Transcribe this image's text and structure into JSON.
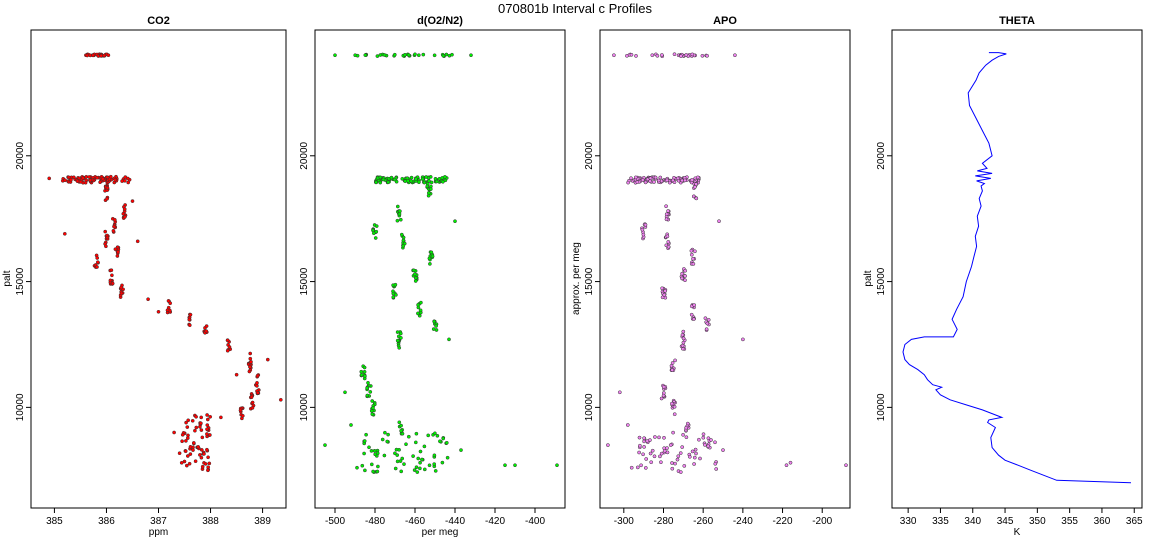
{
  "figure": {
    "title": "070801b   Interval c Profiles"
  },
  "colors": {
    "co2": "#ff0000",
    "o2n2": "#00ee00",
    "apo": "#ee82ee",
    "theta": "#0000ff",
    "outline": "#333333"
  },
  "chart_data": [
    {
      "type": "scatter",
      "title": "CO2",
      "xlabel": "ppm",
      "ylabel": "palt",
      "xlim": [
        384.55,
        389.45
      ],
      "ylim": [
        6000,
        25000
      ],
      "xticks": [
        385,
        386,
        387,
        388,
        389
      ],
      "yticks": [
        10000,
        15000,
        20000
      ],
      "clusters": [
        {
          "x": 385.8,
          "y": 24000,
          "dx": 0.25,
          "dy": 40,
          "n": 28
        },
        {
          "x": 385.8,
          "y": 19050,
          "dx": 0.65,
          "dy": 120,
          "n": 90
        },
        {
          "x": 386.0,
          "y": 18500,
          "dx": 0.03,
          "dy": 350,
          "n": 12
        },
        {
          "x": 386.35,
          "y": 17800,
          "dx": 0.03,
          "dy": 300,
          "n": 10
        },
        {
          "x": 386.15,
          "y": 17200,
          "dx": 0.03,
          "dy": 300,
          "n": 10
        },
        {
          "x": 386.0,
          "y": 16700,
          "dx": 0.03,
          "dy": 300,
          "n": 10
        },
        {
          "x": 386.2,
          "y": 16200,
          "dx": 0.03,
          "dy": 250,
          "n": 8
        },
        {
          "x": 385.8,
          "y": 15800,
          "dx": 0.04,
          "dy": 250,
          "n": 8
        },
        {
          "x": 386.1,
          "y": 15200,
          "dx": 0.03,
          "dy": 350,
          "n": 10
        },
        {
          "x": 386.3,
          "y": 14600,
          "dx": 0.03,
          "dy": 300,
          "n": 10
        },
        {
          "x": 387.2,
          "y": 14000,
          "dx": 0.03,
          "dy": 250,
          "n": 8
        },
        {
          "x": 387.6,
          "y": 13500,
          "dx": 0.03,
          "dy": 250,
          "n": 8
        },
        {
          "x": 387.9,
          "y": 13000,
          "dx": 0.03,
          "dy": 250,
          "n": 8
        },
        {
          "x": 388.35,
          "y": 12500,
          "dx": 0.03,
          "dy": 250,
          "n": 8
        },
        {
          "x": 388.75,
          "y": 11800,
          "dx": 0.03,
          "dy": 400,
          "n": 12
        },
        {
          "x": 388.9,
          "y": 11000,
          "dx": 0.03,
          "dy": 450,
          "n": 12
        },
        {
          "x": 388.8,
          "y": 10200,
          "dx": 0.03,
          "dy": 350,
          "n": 10
        },
        {
          "x": 388.6,
          "y": 9800,
          "dx": 0.03,
          "dy": 250,
          "n": 8
        },
        {
          "x": 387.7,
          "y": 8600,
          "dx": 0.3,
          "dy": 1100,
          "n": 70
        }
      ],
      "scatter_points": [
        [
          385.2,
          16900
        ],
        [
          386.6,
          16600
        ],
        [
          384.9,
          19100
        ],
        [
          389.35,
          10300
        ],
        [
          388.2,
          9600
        ],
        [
          388.5,
          11300
        ],
        [
          389.1,
          11900
        ],
        [
          387.95,
          7500
        ],
        [
          386.8,
          14300
        ],
        [
          387.0,
          13800
        ],
        [
          386.5,
          18200
        ],
        [
          387.3,
          9000
        ]
      ]
    },
    {
      "type": "scatter",
      "title": "d(O2/N2)",
      "xlabel": "per meg",
      "ylabel": "",
      "xlim": [
        -510,
        -385
      ],
      "ylim": [
        6000,
        25000
      ],
      "xticks": [
        -500,
        -480,
        -460,
        -440,
        -420,
        -400
      ],
      "yticks": [
        10000,
        15000,
        20000
      ],
      "clusters": [
        {
          "x": -465,
          "y": 24000,
          "dx": 25,
          "dy": 40,
          "n": 30
        },
        {
          "x": -462,
          "y": 19050,
          "dx": 18,
          "dy": 120,
          "n": 90
        },
        {
          "x": -453,
          "y": 18600,
          "dx": 1,
          "dy": 300,
          "n": 10
        },
        {
          "x": -468,
          "y": 17700,
          "dx": 1,
          "dy": 300,
          "n": 10
        },
        {
          "x": -480,
          "y": 17000,
          "dx": 1,
          "dy": 300,
          "n": 10
        },
        {
          "x": -466,
          "y": 16600,
          "dx": 1,
          "dy": 300,
          "n": 10
        },
        {
          "x": -452,
          "y": 16000,
          "dx": 1,
          "dy": 300,
          "n": 10
        },
        {
          "x": -460,
          "y": 15200,
          "dx": 1,
          "dy": 350,
          "n": 10
        },
        {
          "x": -470,
          "y": 14600,
          "dx": 1,
          "dy": 300,
          "n": 10
        },
        {
          "x": -458,
          "y": 13900,
          "dx": 1,
          "dy": 300,
          "n": 10
        },
        {
          "x": -450,
          "y": 13300,
          "dx": 1,
          "dy": 250,
          "n": 8
        },
        {
          "x": -468,
          "y": 12700,
          "dx": 1,
          "dy": 400,
          "n": 12
        },
        {
          "x": -486,
          "y": 11400,
          "dx": 1,
          "dy": 300,
          "n": 10
        },
        {
          "x": -483,
          "y": 10700,
          "dx": 1,
          "dy": 300,
          "n": 10
        },
        {
          "x": -481,
          "y": 10000,
          "dx": 1,
          "dy": 300,
          "n": 10
        },
        {
          "x": -467,
          "y": 9200,
          "dx": 1,
          "dy": 250,
          "n": 8
        },
        {
          "x": -465,
          "y": 8200,
          "dx": 22,
          "dy": 800,
          "n": 70
        }
      ],
      "scatter_points": [
        [
          -500,
          24000
        ],
        [
          -432,
          24000
        ],
        [
          -505,
          8500
        ],
        [
          -440,
          17400
        ],
        [
          -443,
          12700
        ],
        [
          -495,
          10600
        ],
        [
          -492,
          9300
        ],
        [
          -489,
          7600
        ],
        [
          -410,
          7700
        ],
        [
          -389,
          7700
        ],
        [
          -415,
          7700
        ],
        [
          -437,
          8300
        ]
      ]
    },
    {
      "type": "scatter",
      "title": "APO",
      "xlabel": "",
      "ylabel": "approx. per meg",
      "xlim": [
        -312,
        -186
      ],
      "ylim": [
        6000,
        25000
      ],
      "xticks": [
        -300,
        -280,
        -260,
        -240,
        -220,
        -200
      ],
      "yticks": [
        10000,
        15000,
        20000
      ],
      "clusters": [
        {
          "x": -280,
          "y": 24000,
          "dx": 22,
          "dy": 40,
          "n": 28
        },
        {
          "x": -280,
          "y": 19050,
          "dx": 18,
          "dy": 120,
          "n": 90
        },
        {
          "x": -264,
          "y": 18600,
          "dx": 1,
          "dy": 300,
          "n": 10
        },
        {
          "x": -278,
          "y": 17700,
          "dx": 1,
          "dy": 300,
          "n": 10
        },
        {
          "x": -290,
          "y": 17000,
          "dx": 1,
          "dy": 300,
          "n": 10
        },
        {
          "x": -278,
          "y": 16600,
          "dx": 1,
          "dy": 300,
          "n": 10
        },
        {
          "x": -265,
          "y": 16000,
          "dx": 1,
          "dy": 300,
          "n": 10
        },
        {
          "x": -270,
          "y": 15200,
          "dx": 1,
          "dy": 350,
          "n": 10
        },
        {
          "x": -280,
          "y": 14600,
          "dx": 1,
          "dy": 300,
          "n": 10
        },
        {
          "x": -265,
          "y": 13800,
          "dx": 1,
          "dy": 300,
          "n": 10
        },
        {
          "x": -258,
          "y": 13300,
          "dx": 1,
          "dy": 250,
          "n": 8
        },
        {
          "x": -270,
          "y": 12700,
          "dx": 1,
          "dy": 400,
          "n": 12
        },
        {
          "x": -275,
          "y": 11600,
          "dx": 1,
          "dy": 300,
          "n": 10
        },
        {
          "x": -280,
          "y": 10600,
          "dx": 1,
          "dy": 300,
          "n": 10
        },
        {
          "x": -275,
          "y": 10000,
          "dx": 1,
          "dy": 300,
          "n": 10
        },
        {
          "x": -268,
          "y": 9200,
          "dx": 1,
          "dy": 250,
          "n": 8
        },
        {
          "x": -273,
          "y": 8200,
          "dx": 20,
          "dy": 800,
          "n": 70
        }
      ],
      "scatter_points": [
        [
          -305,
          24000
        ],
        [
          -244,
          24000
        ],
        [
          -308,
          8500
        ],
        [
          -252,
          17400
        ],
        [
          -240,
          12700
        ],
        [
          -302,
          10600
        ],
        [
          -298,
          9300
        ],
        [
          -296,
          7600
        ],
        [
          -218,
          7700
        ],
        [
          -216,
          7800
        ],
        [
          -188,
          7700
        ],
        [
          -250,
          8300
        ]
      ]
    },
    {
      "type": "line",
      "title": "THETA",
      "xlabel": "K",
      "ylabel": "palt",
      "xlim": [
        327.5,
        366.2
      ],
      "ylim": [
        6000,
        25000
      ],
      "xticks": [
        330,
        335,
        340,
        345,
        350,
        355,
        360,
        365
      ],
      "yticks": [
        10000,
        15000,
        20000
      ],
      "x": [
        364.5,
        353,
        351,
        349,
        347,
        345,
        344,
        343,
        342.8,
        343.5,
        342.3,
        342.5,
        344.5,
        341.5,
        339,
        336.5,
        335,
        334.3,
        335.2,
        333.8,
        333,
        332.5,
        331.5,
        330.2,
        329.5,
        329.2,
        329.5,
        330.5,
        332.5,
        335,
        337,
        337.6,
        336.8,
        337.5,
        338.5,
        339,
        339.8,
        340.2,
        340.6,
        340.4,
        340.9,
        340.7,
        341.3,
        341,
        341.5,
        341.3,
        341.8,
        340.6,
        342.8,
        340.4,
        343,
        340.7,
        342.2,
        341.5,
        343,
        342.5,
        341.5,
        340.5,
        339.5,
        339.3,
        340.5,
        341,
        342,
        343,
        344,
        345.2,
        344,
        342.5
      ],
      "y": [
        7000,
        7100,
        7300,
        7500,
        7700,
        7900,
        8100,
        8400,
        8800,
        9200,
        9400,
        9500,
        9600,
        9900,
        10100,
        10300,
        10500,
        10700,
        10800,
        10900,
        11100,
        11300,
        11500,
        11700,
        11900,
        12200,
        12500,
        12700,
        12800,
        12800,
        12800,
        13100,
        13500,
        13900,
        14400,
        15000,
        15600,
        16000,
        16400,
        16800,
        17200,
        17600,
        18000,
        18300,
        18600,
        18800,
        18900,
        19000,
        19100,
        19200,
        19300,
        19400,
        19500,
        19700,
        20000,
        20500,
        21000,
        21500,
        22000,
        22500,
        23000,
        23300,
        23600,
        23800,
        23950,
        24050,
        24100,
        24100
      ]
    }
  ]
}
